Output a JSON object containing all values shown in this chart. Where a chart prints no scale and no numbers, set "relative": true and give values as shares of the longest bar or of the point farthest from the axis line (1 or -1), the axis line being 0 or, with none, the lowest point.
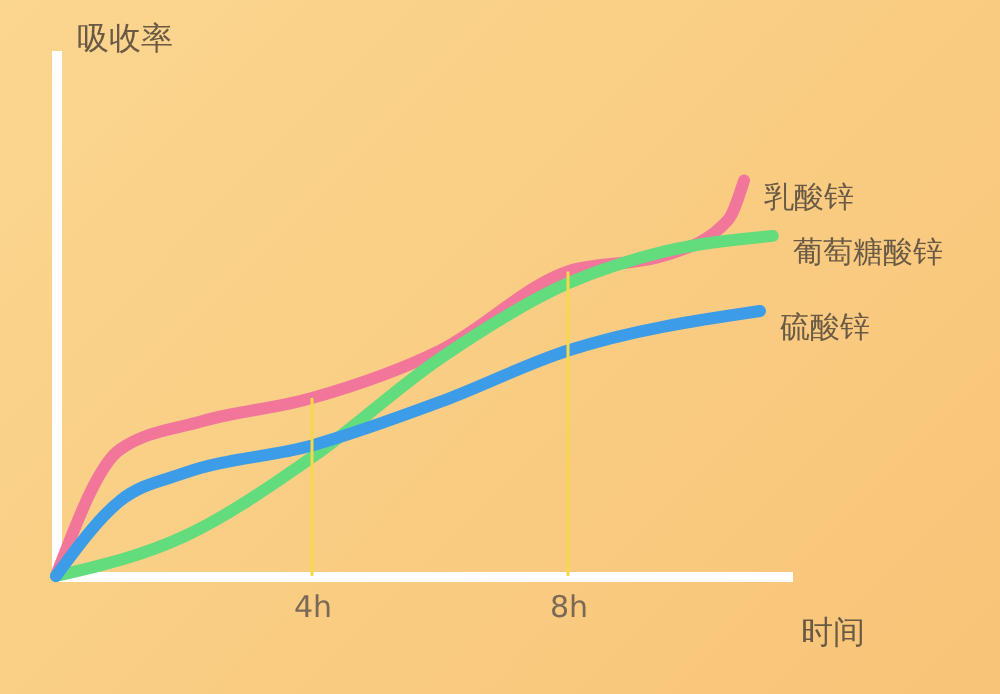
{
  "chart_data": {
    "type": "line",
    "relative": true,
    "ylabel": "吸收率",
    "xlabel": "时间",
    "xlim": [
      0,
      11.5
    ],
    "xticks": [
      {
        "value": 4,
        "label": "4h"
      },
      {
        "value": 8,
        "label": "8h"
      }
    ],
    "grid": false,
    "marker": "none",
    "line_style": "solid",
    "series": [
      {
        "name": "乳酸锌",
        "color": "#f2769a",
        "x": [
          0,
          1,
          2.25,
          4,
          6,
          8,
          9.5,
          10.5,
          10.75
        ],
        "values": [
          0,
          0.32,
          0.39,
          0.45,
          0.57,
          0.77,
          0.81,
          0.9,
          1
        ]
      },
      {
        "name": "葡萄糖酸锌",
        "color": "#62dc7c",
        "x": [
          0,
          2,
          4,
          6,
          8,
          9.5,
          11.2
        ],
        "values": [
          0,
          0.1,
          0.3,
          0.55,
          0.74,
          0.82,
          0.86
        ]
      },
      {
        "name": "硫酸锌",
        "color": "#3d9ce8",
        "x": [
          0,
          1,
          2,
          4,
          6,
          8,
          11
        ],
        "values": [
          0,
          0.19,
          0.26,
          0.33,
          0.44,
          0.57,
          0.67
        ]
      }
    ],
    "ref_lines": [
      {
        "axis": "x",
        "value": 4,
        "label": null,
        "color": "#f7d84a"
      },
      {
        "axis": "x",
        "value": 8,
        "label": null,
        "color": "#f7d84a"
      }
    ]
  }
}
